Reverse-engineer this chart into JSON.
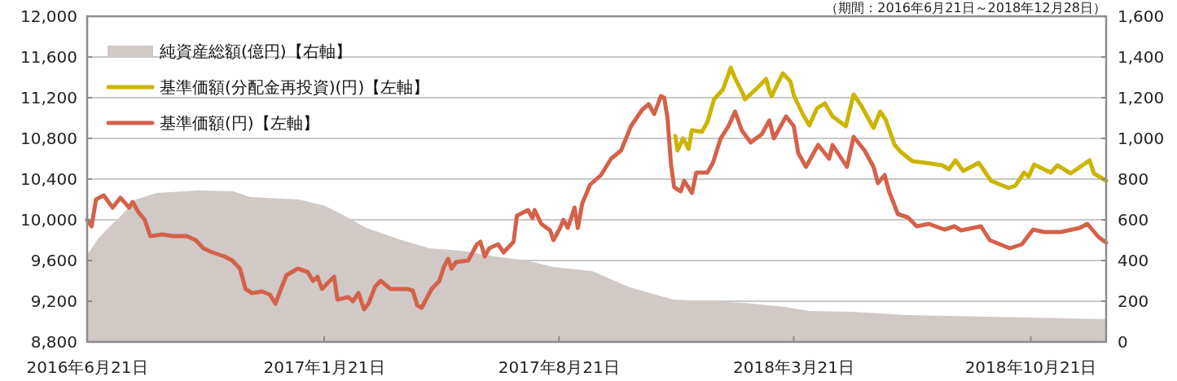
{
  "chart_data": {
    "type": "line",
    "title": "（期間：2016年6月21日～2018年12月28日）",
    "xlim": [
      "2016-06-21",
      "2018-12-28"
    ],
    "xticks": [
      {
        "value": "2016-06-21",
        "label": "2016年6月21日"
      },
      {
        "value": "2017-01-21",
        "label": "2017年1月21日"
      },
      {
        "value": "2017-08-21",
        "label": "2017年8月21日"
      },
      {
        "value": "2018-03-21",
        "label": "2018年3月21日"
      },
      {
        "value": "2018-10-21",
        "label": "2018年10月21日"
      }
    ],
    "ylim": [
      8800,
      12000
    ],
    "yticks": [
      {
        "value": 8800,
        "label": "8,800"
      },
      {
        "value": 9200,
        "label": "9,200"
      },
      {
        "value": 9600,
        "label": "9,600"
      },
      {
        "value": 10000,
        "label": "10,000"
      },
      {
        "value": 10400,
        "label": "10,400"
      },
      {
        "value": 10800,
        "label": "10,800"
      },
      {
        "value": 11200,
        "label": "11,200"
      },
      {
        "value": 11600,
        "label": "11,600"
      },
      {
        "value": 12000,
        "label": "12,000"
      }
    ],
    "y2lim": [
      0,
      1600
    ],
    "y2ticks": [
      0,
      200,
      400,
      600,
      800,
      {
        "value": 1000,
        "label": "1,000"
      },
      {
        "value": 1200,
        "label": "1,200"
      },
      {
        "value": 1400,
        "label": "1,400"
      },
      {
        "value": 1600,
        "label": "1,600"
      }
    ],
    "grid": "y",
    "legend": "top left",
    "series": [
      {
        "name": "純資産総額(億円)【右軸】",
        "type": "area",
        "axis": "y2",
        "color": "#d0c9c6",
        "x": [
          "2016-06-21",
          "2016-07-01",
          "2016-07-10",
          "2016-07-23",
          "2016-08-04",
          "2016-08-23",
          "2016-09-29",
          "2016-10-31",
          "2016-11-15",
          "2016-12-29",
          "2017-01-22",
          "2017-02-11",
          "2017-02-28",
          "2017-04-01",
          "2017-04-26",
          "2017-05-25",
          "2017-06-24",
          "2017-07-23",
          "2017-08-16",
          "2017-09-20",
          "2017-10-24",
          "2017-12-02",
          "2018-02-04",
          "2018-03-13",
          "2018-04-04",
          "2018-05-13",
          "2018-07-01",
          "2018-09-12",
          "2018-12-28"
        ],
        "values": [
          428,
          508,
          560,
          628,
          700,
          732,
          744,
          740,
          712,
          700,
          668,
          612,
          560,
          500,
          460,
          448,
          420,
          400,
          368,
          348,
          268,
          208,
          192,
          172,
          152,
          148,
          132,
          124,
          112
        ]
      },
      {
        "name": "基準価額(分配金再投資)(円)【左軸】",
        "color": "#ccb400",
        "x": [
          "2017-12-04",
          "2017-12-06",
          "2017-12-11",
          "2017-12-16",
          "2017-12-19",
          "2017-12-28",
          "2018-01-02",
          "2018-01-08",
          "2018-01-16",
          "2018-01-20",
          "2018-01-23",
          "2018-01-27",
          "2018-02-03",
          "2018-02-05",
          "2018-02-16",
          "2018-02-24",
          "2018-02-27",
          "2018-03-01",
          "2018-03-11",
          "2018-03-18",
          "2018-03-21",
          "2018-03-29",
          "2018-04-04",
          "2018-04-11",
          "2018-04-18",
          "2018-04-25",
          "2018-05-07",
          "2018-05-14",
          "2018-05-21",
          "2018-06-01",
          "2018-06-07",
          "2018-06-12",
          "2018-06-20",
          "2018-06-26",
          "2018-07-06",
          "2018-07-18",
          "2018-08-02",
          "2018-08-08",
          "2018-08-14",
          "2018-08-21",
          "2018-09-04",
          "2018-09-15",
          "2018-10-01",
          "2018-10-07",
          "2018-10-15",
          "2018-10-19",
          "2018-10-24",
          "2018-11-08",
          "2018-11-14",
          "2018-11-26",
          "2018-12-13",
          "2018-12-17",
          "2018-12-28"
        ],
        "values": [
          10824,
          10680,
          10800,
          10696,
          10880,
          10864,
          10960,
          11184,
          11280,
          11400,
          11496,
          11392,
          11240,
          11184,
          11296,
          11384,
          11264,
          11216,
          11440,
          11360,
          11224,
          11040,
          10928,
          11096,
          11144,
          11016,
          10920,
          11232,
          11120,
          10904,
          11064,
          10984,
          10736,
          10664,
          10576,
          10560,
          10536,
          10496,
          10584,
          10480,
          10560,
          10384,
          10312,
          10336,
          10464,
          10424,
          10544,
          10464,
          10536,
          10456,
          10584,
          10456,
          10384
        ]
      },
      {
        "name": "基準価額(円)【左軸】",
        "color": "#d4614a",
        "x": [
          "2016-06-21",
          "2016-06-25",
          "2016-06-29",
          "2016-07-06",
          "2016-07-14",
          "2016-07-21",
          "2016-07-29",
          "2016-08-01",
          "2016-08-06",
          "2016-08-12",
          "2016-08-17",
          "2016-08-28",
          "2016-09-06",
          "2016-09-19",
          "2016-09-27",
          "2016-10-04",
          "2016-10-12",
          "2016-10-23",
          "2016-10-30",
          "2016-11-06",
          "2016-11-11",
          "2016-11-17",
          "2016-11-26",
          "2016-12-03",
          "2016-12-08",
          "2016-12-13",
          "2016-12-18",
          "2016-12-28",
          "2017-01-06",
          "2017-01-11",
          "2017-01-15",
          "2017-01-19",
          "2017-01-26",
          "2017-01-30",
          "2017-02-02",
          "2017-02-12",
          "2017-02-16",
          "2017-02-21",
          "2017-02-26",
          "2017-03-02",
          "2017-03-08",
          "2017-03-13",
          "2017-03-22",
          "2017-04-06",
          "2017-04-11",
          "2017-04-15",
          "2017-04-19",
          "2017-04-28",
          "2017-05-05",
          "2017-05-09",
          "2017-05-13",
          "2017-05-16",
          "2017-05-20",
          "2017-05-31",
          "2017-06-08",
          "2017-06-11",
          "2017-06-15",
          "2017-06-19",
          "2017-06-27",
          "2017-07-02",
          "2017-07-11",
          "2017-07-14",
          "2017-07-24",
          "2017-07-28",
          "2017-07-30",
          "2017-08-05",
          "2017-08-13",
          "2017-08-16",
          "2017-08-22",
          "2017-08-25",
          "2017-08-29",
          "2017-09-04",
          "2017-09-07",
          "2017-09-11",
          "2017-09-18",
          "2017-09-28",
          "2017-10-07",
          "2017-10-16",
          "2017-10-25",
          "2017-11-04",
          "2017-11-10",
          "2017-11-15",
          "2017-11-21",
          "2017-11-24",
          "2017-11-27",
          "2017-11-30",
          "2017-12-03",
          "2017-12-09",
          "2017-12-12",
          "2017-12-19",
          "2017-12-23",
          "2018-01-02",
          "2018-01-07",
          "2018-01-14",
          "2018-01-21",
          "2018-01-27",
          "2018-02-02",
          "2018-02-10",
          "2018-02-20",
          "2018-02-27",
          "2018-03-03",
          "2018-03-14",
          "2018-03-21",
          "2018-03-25",
          "2018-04-01",
          "2018-04-12",
          "2018-04-22",
          "2018-04-25",
          "2018-05-08",
          "2018-05-14",
          "2018-05-24",
          "2018-06-01",
          "2018-06-05",
          "2018-06-11",
          "2018-06-15",
          "2018-06-23",
          "2018-07-02",
          "2018-07-10",
          "2018-07-21",
          "2018-08-04",
          "2018-08-13",
          "2018-08-19",
          "2018-09-06",
          "2018-09-14",
          "2018-10-02",
          "2018-10-13",
          "2018-10-23",
          "2018-11-02",
          "2018-11-17",
          "2018-12-04",
          "2018-12-11",
          "2018-12-21",
          "2018-12-28"
        ],
        "values": [
          10000,
          9936,
          10200,
          10240,
          10120,
          10216,
          10120,
          10176,
          10080,
          10000,
          9840,
          9856,
          9840,
          9840,
          9800,
          9720,
          9680,
          9640,
          9600,
          9520,
          9320,
          9280,
          9296,
          9264,
          9176,
          9320,
          9456,
          9520,
          9488,
          9400,
          9440,
          9320,
          9400,
          9440,
          9216,
          9240,
          9200,
          9280,
          9120,
          9176,
          9344,
          9400,
          9320,
          9320,
          9304,
          9160,
          9136,
          9320,
          9400,
          9536,
          9616,
          9520,
          9584,
          9600,
          9760,
          9784,
          9640,
          9720,
          9760,
          9680,
          9784,
          10040,
          10096,
          10016,
          10096,
          9960,
          9896,
          9800,
          9920,
          10000,
          9920,
          10120,
          9920,
          10160,
          10344,
          10440,
          10600,
          10680,
          10920,
          11080,
          11136,
          11040,
          11216,
          11200,
          11000,
          10560,
          10320,
          10280,
          10384,
          10264,
          10464,
          10464,
          10560,
          10800,
          10920,
          11064,
          10880,
          10760,
          10840,
          10976,
          10800,
          11016,
          10920,
          10656,
          10520,
          10736,
          10600,
          10736,
          10520,
          10816,
          10680,
          10520,
          10360,
          10440,
          10280,
          10056,
          10024,
          9936,
          9960,
          9904,
          9936,
          9896,
          9936,
          9800,
          9720,
          9760,
          9904,
          9880,
          9880,
          9920,
          9960,
          9832,
          9776
        ]
      }
    ]
  }
}
